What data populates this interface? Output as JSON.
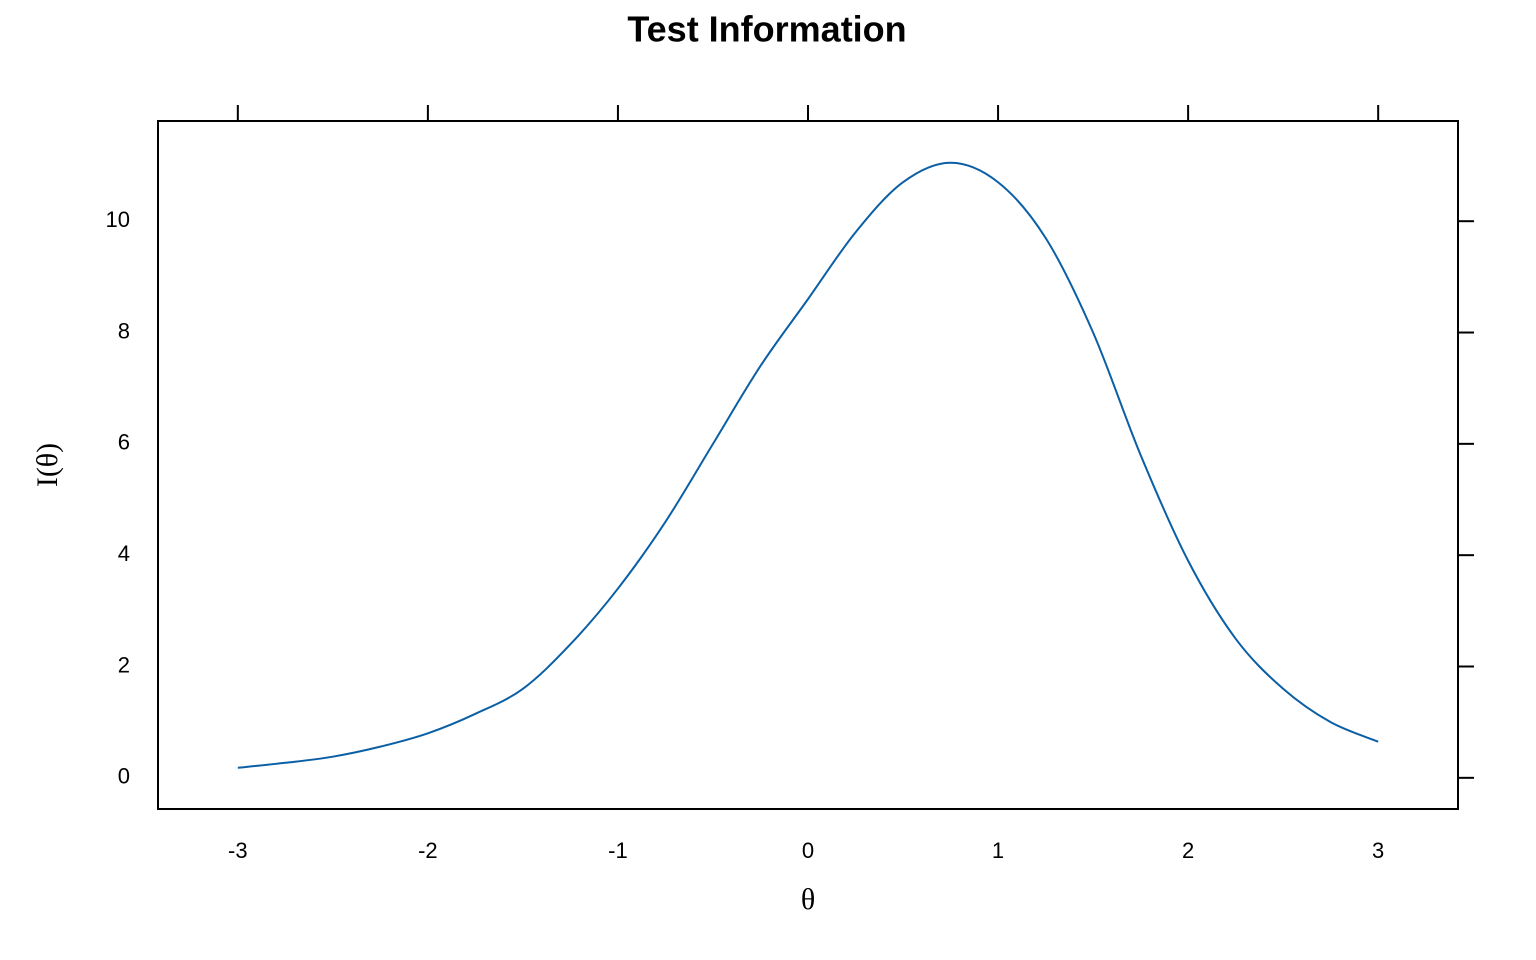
{
  "chart_data": {
    "type": "line",
    "title": "Test Information",
    "x_label": "θ",
    "y_label": "I(θ)",
    "x": [
      -3,
      -2.75,
      -2.5,
      -2.25,
      -2,
      -1.75,
      -1.5,
      -1.25,
      -1,
      -0.75,
      -0.5,
      -0.25,
      0,
      0.25,
      0.5,
      0.75,
      1,
      1.25,
      1.5,
      1.75,
      2,
      2.25,
      2.5,
      2.75,
      3
    ],
    "series": [
      {
        "name": "Test Information",
        "color": "#0b5fa5",
        "values": [
          0.18,
          0.27,
          0.38,
          0.56,
          0.8,
          1.15,
          1.6,
          2.4,
          3.4,
          4.6,
          6.0,
          7.4,
          8.6,
          9.8,
          10.7,
          11.05,
          10.7,
          9.7,
          8.0,
          5.8,
          3.9,
          2.5,
          1.6,
          1.0,
          0.65
        ]
      }
    ],
    "xlim": [
      -3.42,
      3.42
    ],
    "xticks": [
      -3,
      -2,
      -1,
      0,
      1,
      2,
      3
    ],
    "ylim": [
      -0.56,
      11.8
    ],
    "yticks": [
      0,
      2,
      4,
      6,
      8,
      10
    ]
  }
}
